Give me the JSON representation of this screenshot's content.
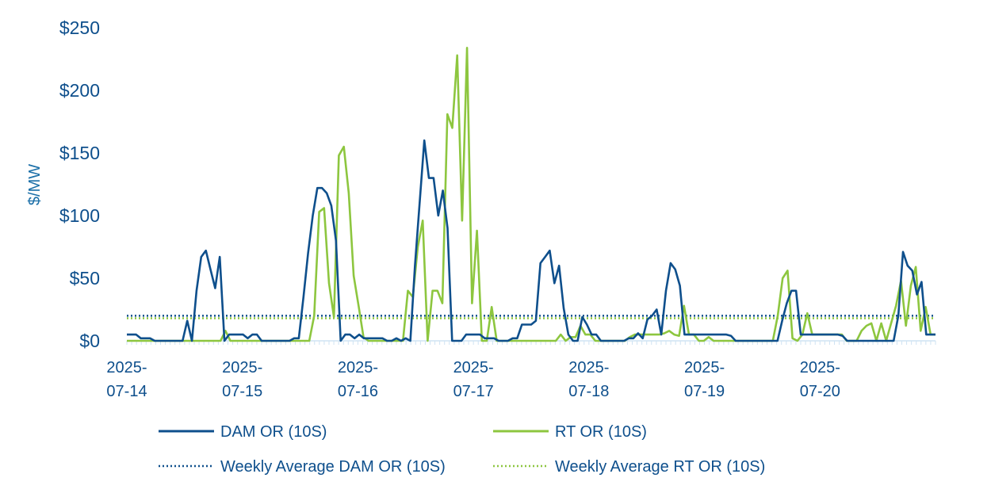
{
  "chart_data": {
    "type": "line",
    "ylabel": "$/MW",
    "ylim": [
      0,
      250
    ],
    "y_ticks": [
      0,
      50,
      100,
      150,
      200,
      250
    ],
    "y_tick_labels": [
      "$0",
      "$50",
      "$100",
      "$150",
      "$200",
      "$250"
    ],
    "x_range_hours": [
      0,
      168
    ],
    "x_tick_labels": [
      [
        "2025-",
        "07-14"
      ],
      [
        "2025-",
        "07-15"
      ],
      [
        "2025-",
        "07-16"
      ],
      [
        "2025-",
        "07-17"
      ],
      [
        "2025-",
        "07-18"
      ],
      [
        "2025-",
        "07-19"
      ],
      [
        "2025-",
        "07-20"
      ]
    ],
    "legend_placement": "bottom",
    "grid": false,
    "series": [
      {
        "name": "DAM OR (10S)",
        "color": "#0e4f8c",
        "style": "solid",
        "values": [
          5,
          5,
          5,
          2,
          2,
          2,
          0,
          0,
          0,
          0,
          0,
          0,
          0,
          16,
          0,
          40,
          67,
          72,
          57,
          42,
          67,
          0,
          5,
          5,
          5,
          5,
          2,
          5,
          5,
          0,
          0,
          0,
          0,
          0,
          0,
          0,
          2,
          2,
          35,
          70,
          100,
          122,
          122,
          118,
          108,
          80,
          0,
          5,
          5,
          2,
          5,
          2,
          2,
          2,
          2,
          2,
          0,
          0,
          2,
          0,
          2,
          0,
          60,
          110,
          160,
          130,
          130,
          100,
          120,
          90,
          0,
          0,
          0,
          5,
          5,
          5,
          5,
          2,
          2,
          2,
          0,
          0,
          0,
          2,
          2,
          13,
          13,
          13,
          16,
          62,
          67,
          72,
          46,
          60,
          26,
          5,
          0,
          0,
          19,
          13,
          5,
          5,
          0,
          0,
          0,
          0,
          0,
          0,
          2,
          2,
          6,
          2,
          17,
          20,
          25,
          5,
          40,
          62,
          57,
          44,
          5,
          5,
          5,
          5,
          5,
          5,
          5,
          5,
          5,
          5,
          4,
          0,
          0,
          0,
          0,
          0,
          0,
          0,
          0,
          0,
          0,
          16,
          30,
          40,
          40,
          5,
          5,
          5,
          5,
          5,
          5,
          5,
          5,
          5,
          4,
          0,
          0,
          0,
          0,
          0,
          0,
          0,
          0,
          0,
          0,
          0,
          20,
          71,
          60,
          56,
          37,
          47,
          5,
          5,
          5
        ]
      },
      {
        "name": "RT OR (10S)",
        "color": "#8dc63f",
        "style": "solid",
        "values": [
          0,
          0,
          0,
          0,
          0,
          0,
          0,
          0,
          0,
          0,
          0,
          0,
          0,
          0,
          0,
          0,
          0,
          0,
          0,
          0,
          8,
          0,
          0,
          0,
          0,
          0,
          0,
          0,
          0,
          0,
          0,
          0,
          0,
          0,
          0,
          0,
          0,
          0,
          20,
          103,
          106,
          46,
          19,
          148,
          155,
          118,
          52,
          28,
          3,
          0,
          0,
          0,
          0,
          0,
          0,
          0,
          0,
          40,
          35,
          75,
          96,
          0,
          40,
          40,
          30,
          181,
          170,
          228,
          96,
          234,
          30,
          88,
          0,
          0,
          27,
          0,
          0,
          0,
          0,
          0,
          0,
          0,
          0,
          0,
          0,
          0,
          0,
          0,
          5,
          0,
          3,
          3,
          12,
          5,
          5,
          0,
          0,
          0,
          0,
          0,
          0,
          0,
          3,
          5,
          5,
          5,
          5,
          5,
          5,
          6,
          8,
          5,
          4,
          28,
          5,
          5,
          0,
          0,
          3,
          0,
          0,
          0,
          0,
          0,
          0,
          0,
          0,
          0,
          0,
          0,
          0,
          0,
          20,
          50,
          56,
          2,
          0,
          5,
          22,
          5,
          5,
          5,
          5,
          5,
          5,
          5,
          0,
          0,
          0,
          8,
          12,
          14,
          0,
          14,
          0,
          14,
          28,
          48,
          12,
          44,
          59,
          8,
          27,
          5,
          5
        ]
      },
      {
        "name": "Weekly Average DAM OR (10S)",
        "color": "#0e4f8c",
        "style": "dotted",
        "value": 20
      },
      {
        "name": "Weekly Average RT OR (10S)",
        "color": "#8dc63f",
        "style": "dotted",
        "value": 18
      }
    ]
  }
}
